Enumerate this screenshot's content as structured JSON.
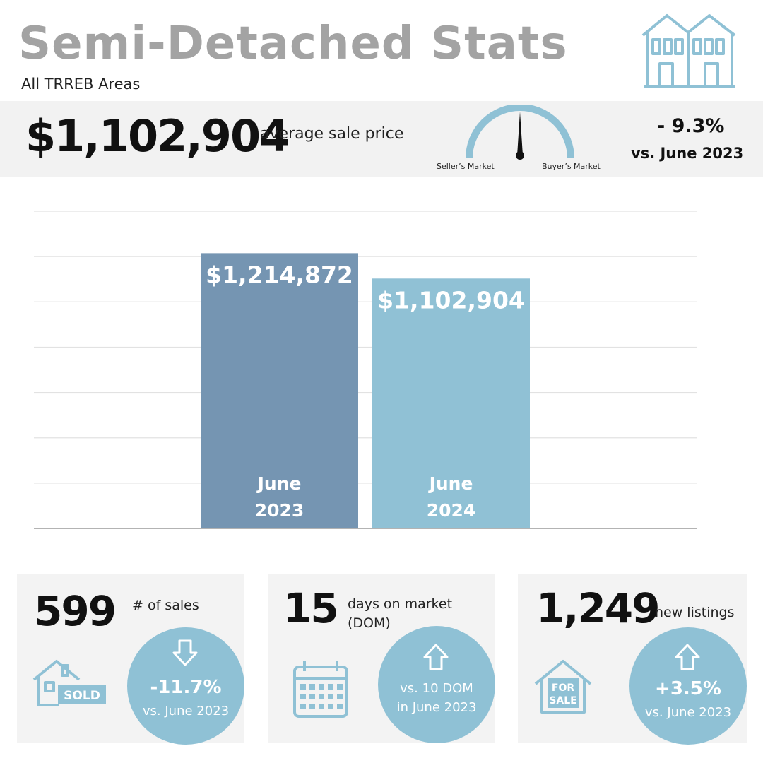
{
  "header": {
    "title": "Semi-Detached Stats",
    "subtitle": "All TRREB Areas"
  },
  "summary": {
    "avg_price": "$1,102,904",
    "avg_label": "average sale price",
    "gauge": {
      "left_label": "Seller’s Market",
      "right_label": "Buyer’s Market",
      "needle_position": 0.5
    },
    "change_pct": "- 9.3%",
    "change_vs": "vs. June 2023"
  },
  "chart_data": {
    "type": "bar",
    "categories": [
      "June 2023",
      "June 2024"
    ],
    "category_lines": [
      [
        "June",
        "2023"
      ],
      [
        "June",
        "2024"
      ]
    ],
    "values": [
      1214872,
      1102904
    ],
    "value_labels": [
      "$1,214,872",
      "$1,102,904"
    ],
    "ylim": [
      0,
      1400000
    ],
    "grid": true,
    "colors": [
      "#7595b2",
      "#90c1d5"
    ]
  },
  "cards": {
    "sales": {
      "value": "599",
      "label": "# of sales",
      "change": "-11.7%",
      "vs": "vs. June 2023",
      "arrow": "down",
      "icon": "sold-house-icon",
      "icon_text": "SOLD"
    },
    "dom": {
      "value": "15",
      "label_line1": "days on market",
      "label_line2": "(DOM)",
      "vs_line1": "vs. 10 DOM",
      "vs_line2": "in June 2023",
      "arrow": "up",
      "icon": "calendar-icon"
    },
    "listings": {
      "value": "1,249",
      "label": "new listings",
      "change": "+3.5%",
      "vs": "vs. June 2023",
      "arrow": "up",
      "icon": "for-sale-house-icon",
      "icon_text_1": "FOR",
      "icon_text_2": "SALE"
    }
  },
  "colors": {
    "accent": "#8fc1d5",
    "bar_2023": "#7595b2",
    "bar_2024": "#90c1d5",
    "title_gray": "#a3a3a3",
    "band": "#f2f2f2"
  }
}
